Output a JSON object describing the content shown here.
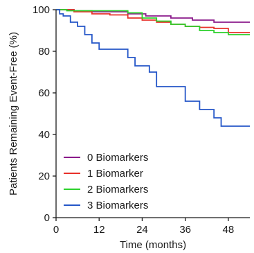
{
  "chart_data": {
    "type": "line",
    "step": true,
    "xlabel": "Time (months)",
    "ylabel": "Patients Remaining Event-Free (%)",
    "xlim": [
      0,
      54
    ],
    "ylim": [
      0,
      100
    ],
    "xticks": [
      0,
      12,
      24,
      36,
      48
    ],
    "yticks": [
      0,
      20,
      40,
      60,
      80,
      100
    ],
    "grid": false,
    "legend_position": "bottom-left",
    "series": [
      {
        "name": "0 Biomarkers",
        "color": "#8b1a8b",
        "x": [
          0,
          5,
          10,
          20,
          25,
          32,
          38,
          44,
          54
        ],
        "y": [
          100,
          99.5,
          99,
          98,
          97,
          96,
          95,
          94,
          94
        ]
      },
      {
        "name": "1 Biomarker",
        "color": "#e8302a",
        "x": [
          0,
          5,
          10,
          15,
          20,
          24,
          28,
          32,
          36,
          40,
          44,
          48,
          54
        ],
        "y": [
          100,
          99,
          98,
          97.5,
          96,
          95,
          94,
          93,
          92,
          91.5,
          91,
          89,
          89
        ]
      },
      {
        "name": "2 Biomarkers",
        "color": "#2bd12b",
        "x": [
          0,
          3,
          12,
          20,
          24,
          28,
          32,
          36,
          40,
          44,
          48,
          54
        ],
        "y": [
          100,
          99.5,
          99.5,
          98.5,
          96,
          94.5,
          93,
          92,
          90,
          89,
          88,
          88
        ]
      },
      {
        "name": "3 Biomarkers",
        "color": "#2456c8",
        "x": [
          0,
          1,
          2,
          4,
          6,
          8,
          10,
          12,
          17,
          20,
          22,
          24,
          26,
          28,
          31,
          36,
          40,
          44,
          46,
          48,
          54
        ],
        "y": [
          100,
          98,
          97,
          94,
          92,
          88,
          84,
          81,
          81,
          77,
          73,
          73,
          70,
          63,
          63,
          56,
          52,
          48,
          44,
          44,
          44
        ]
      }
    ]
  }
}
